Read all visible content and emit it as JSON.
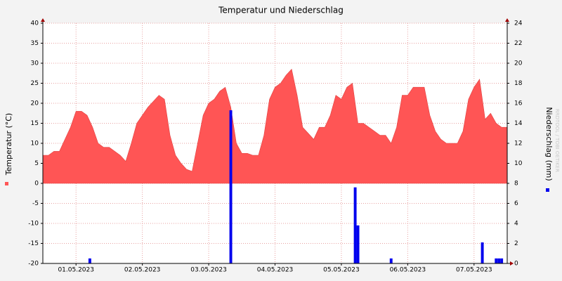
{
  "chart_data": {
    "type": "area",
    "title": "Temperatur und Niederschlag",
    "watermark": "RRDTOOL / TOBI OETIKER",
    "x": [
      0,
      2,
      4,
      6,
      8,
      10,
      12,
      14,
      16,
      18,
      20,
      22,
      24,
      26,
      28,
      30,
      32,
      34,
      36,
      38,
      40,
      42,
      44,
      46,
      48,
      50,
      52,
      54,
      56,
      58,
      60,
      62,
      64,
      66,
      68,
      70,
      72,
      74,
      76,
      78,
      80,
      82,
      84,
      86,
      88,
      90,
      92,
      94,
      96,
      98,
      100,
      102,
      104,
      106,
      108,
      110,
      112,
      114,
      116,
      118,
      120,
      122,
      124,
      126,
      128,
      130,
      132,
      134,
      136,
      138,
      140,
      142,
      144,
      146,
      148,
      150,
      152,
      154,
      156,
      158,
      160,
      162,
      164,
      166,
      168
    ],
    "xlim": [
      0,
      168
    ],
    "xticks": [
      {
        "value": 12,
        "label": "01.05.2023"
      },
      {
        "value": 36,
        "label": "02.05.2023"
      },
      {
        "value": 60,
        "label": "03.05.2023"
      },
      {
        "value": 84,
        "label": "04.05.2023"
      },
      {
        "value": 108,
        "label": "05.05.2023"
      },
      {
        "value": 132,
        "label": "06.05.2023"
      },
      {
        "value": 156,
        "label": "07.05.2023"
      }
    ],
    "series": [
      {
        "name": "Temperatur (°C)",
        "type": "area",
        "color": "#ff5555",
        "values": [
          7,
          7,
          8,
          8,
          11,
          14,
          18,
          18,
          17,
          14,
          10,
          9,
          9,
          8,
          7,
          5.5,
          10,
          15,
          17,
          19,
          20.5,
          22,
          21,
          12,
          7,
          5,
          3.5,
          3,
          10,
          17,
          20,
          21,
          23,
          24,
          19,
          10,
          7.5,
          7.5,
          7,
          7,
          12,
          21,
          24,
          25,
          27,
          28.5,
          22,
          14,
          12.5,
          11,
          14,
          14,
          17,
          22,
          21,
          24,
          25,
          15,
          15,
          14,
          13,
          12,
          12,
          10,
          14,
          22,
          22,
          24,
          24,
          24,
          17,
          13,
          11,
          10,
          10,
          10,
          13,
          21,
          24,
          26,
          16,
          17.5,
          15,
          14,
          14
        ]
      },
      {
        "name": "Niederschlag (mm)",
        "type": "bar",
        "axis": "y2",
        "color": "#0000ee",
        "x": [
          17,
          68,
          113,
          114,
          126,
          159,
          164,
          165,
          166
        ],
        "values": [
          0.5,
          15.3,
          7.6,
          3.8,
          0.5,
          2.1,
          0.5,
          0.5,
          0.5
        ]
      }
    ],
    "ylim": [
      -20,
      40
    ],
    "yticks": [
      -20,
      -15,
      -10,
      -5,
      0,
      5,
      10,
      15,
      20,
      25,
      30,
      35,
      40
    ],
    "y2lim": [
      0,
      24
    ],
    "y2ticks": [
      0,
      2,
      4,
      6,
      8,
      10,
      12,
      14,
      16,
      18,
      20,
      22,
      24
    ],
    "grid": true
  }
}
